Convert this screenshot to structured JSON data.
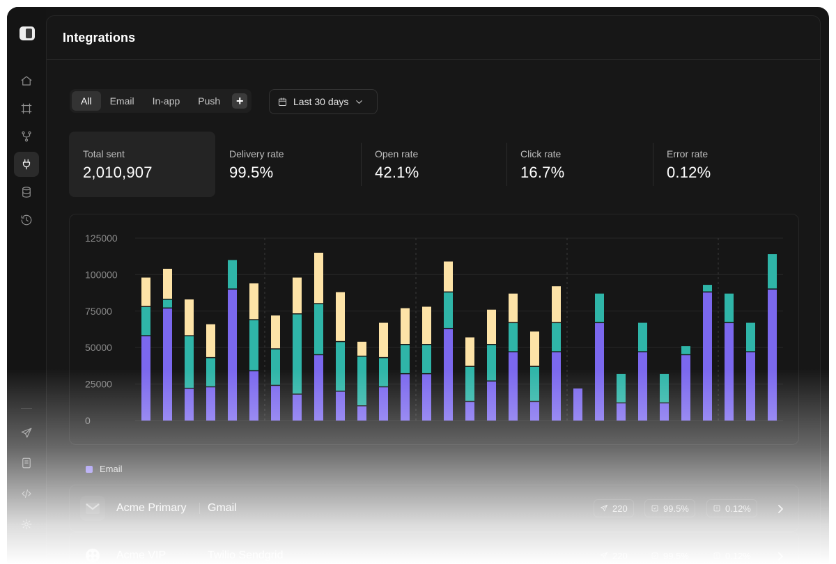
{
  "header": {
    "title": "Integrations"
  },
  "sidebar": {
    "top_items": [
      {
        "name": "home",
        "icon": "home-icon",
        "active": false
      },
      {
        "name": "workflows",
        "icon": "frame-icon",
        "active": false
      },
      {
        "name": "branches",
        "icon": "git-branch-icon",
        "active": false
      },
      {
        "name": "integrations",
        "icon": "plug-icon",
        "active": true
      },
      {
        "name": "database",
        "icon": "database-icon",
        "active": false
      },
      {
        "name": "history",
        "icon": "history-icon",
        "active": false
      }
    ],
    "bottom_items": [
      {
        "name": "send",
        "icon": "send-icon"
      },
      {
        "name": "docs",
        "icon": "book-icon"
      },
      {
        "name": "code",
        "icon": "code-icon"
      },
      {
        "name": "settings",
        "icon": "gear-icon"
      }
    ]
  },
  "filters": {
    "tabs": [
      {
        "label": "All",
        "active": true
      },
      {
        "label": "Email",
        "active": false
      },
      {
        "label": "In-app",
        "active": false
      },
      {
        "label": "Push",
        "active": false
      }
    ],
    "add_label": "+",
    "date_range": "Last 30 days"
  },
  "stats": [
    {
      "label": "Total sent",
      "value": "2,010,907",
      "active": true
    },
    {
      "label": "Delivery rate",
      "value": "99.5%",
      "active": false
    },
    {
      "label": "Open rate",
      "value": "42.1%",
      "active": false
    },
    {
      "label": "Click rate",
      "value": "16.7%",
      "active": false
    },
    {
      "label": "Error rate",
      "value": "0.12%",
      "active": false
    }
  ],
  "chart_data": {
    "type": "bar",
    "stacked": true,
    "ylim": [
      0,
      125000
    ],
    "yticks": [
      "125000",
      "100000",
      "75000",
      "50000",
      "25000",
      "0"
    ],
    "grid": true,
    "colors": [
      "#7b68ee",
      "#2fb5a8",
      "#fde3a7"
    ],
    "series": [
      {
        "values": [
          58000,
          77000,
          22000,
          23000,
          90000,
          34000,
          24000,
          18000,
          45000,
          20000,
          10000,
          23000,
          32000,
          32000,
          63000,
          13000,
          27000,
          47000,
          13000,
          47000,
          22000,
          67000,
          12000,
          47000,
          12000,
          45000,
          88000,
          67000,
          47000,
          90000
        ]
      },
      {
        "values": [
          20000,
          6000,
          36000,
          20000,
          20000,
          35000,
          25000,
          55000,
          35000,
          34000,
          34000,
          20000,
          20000,
          20000,
          25000,
          24000,
          25000,
          20000,
          24000,
          20000,
          0,
          20000,
          20000,
          20000,
          20000,
          6000,
          5000,
          20000,
          20000,
          24000
        ]
      },
      {
        "values": [
          20000,
          21000,
          25000,
          23000,
          0,
          25000,
          23000,
          25000,
          35000,
          34000,
          10000,
          24000,
          25000,
          26000,
          21000,
          20000,
          24000,
          20000,
          24000,
          25000,
          0,
          0,
          0,
          0,
          0,
          0,
          0,
          0,
          0,
          0
        ]
      }
    ]
  },
  "legend": {
    "label": "Email",
    "color": "#7b68ee"
  },
  "integrations": [
    {
      "name": "Acme Primary",
      "provider": "Gmail",
      "logo": "gmail-logo",
      "sent": "220",
      "delivery": "99.5%",
      "error": "0.12%"
    },
    {
      "name": "Acme VIP",
      "provider": "Twilio Sendgrid",
      "logo": "twilio-logo",
      "sent": "220",
      "delivery": "99.5%",
      "error": "0.12%"
    }
  ]
}
